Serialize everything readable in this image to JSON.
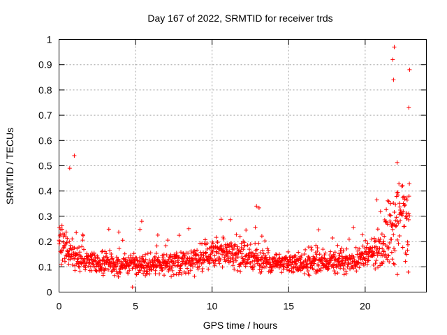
{
  "chart_data": {
    "type": "scatter",
    "title": "Day 167 of 2022, SRMTID for receiver trds",
    "xlabel": "GPS time / hours",
    "ylabel": "SRMTID / TECUs",
    "xlim": [
      0,
      24
    ],
    "ylim": [
      0,
      1
    ],
    "grid": true,
    "marker": "+",
    "color": "#ff0000",
    "xticks": [
      {
        "value": 0,
        "label": "0"
      },
      {
        "value": 5,
        "label": "5"
      },
      {
        "value": 10,
        "label": "10"
      },
      {
        "value": 15,
        "label": "15"
      },
      {
        "value": 20,
        "label": "20"
      }
    ],
    "yticks": [
      {
        "value": 0,
        "label": "0"
      },
      {
        "value": 0.1,
        "label": "0.1"
      },
      {
        "value": 0.2,
        "label": "0.2"
      },
      {
        "value": 0.3,
        "label": "0.3"
      },
      {
        "value": 0.4,
        "label": "0.4"
      },
      {
        "value": 0.5,
        "label": "0.5"
      },
      {
        "value": 0.6,
        "label": "0.6"
      },
      {
        "value": 0.7,
        "label": "0.7"
      },
      {
        "value": 0.8,
        "label": "0.8"
      },
      {
        "value": 0.9,
        "label": "0.9"
      },
      {
        "value": 1,
        "label": "1"
      }
    ],
    "series": [
      {
        "name": "SRMTID (trds)",
        "x_range": [
          0,
          22.9
        ],
        "points_count": 1380,
        "baseline_by_hour": [
          {
            "x": 0,
            "y": 0.2
          },
          {
            "x": 1,
            "y": 0.14
          },
          {
            "x": 3,
            "y": 0.11
          },
          {
            "x": 5,
            "y": 0.11
          },
          {
            "x": 7,
            "y": 0.11
          },
          {
            "x": 9,
            "y": 0.13
          },
          {
            "x": 11,
            "y": 0.16
          },
          {
            "x": 13,
            "y": 0.13
          },
          {
            "x": 15,
            "y": 0.11
          },
          {
            "x": 17,
            "y": 0.12
          },
          {
            "x": 19,
            "y": 0.12
          },
          {
            "x": 20.5,
            "y": 0.15
          },
          {
            "x": 21.5,
            "y": 0.22
          },
          {
            "x": 22.9,
            "y": 0.35
          }
        ],
        "notable_points": [
          {
            "x": 1.0,
            "y": 0.54
          },
          {
            "x": 0.7,
            "y": 0.49
          },
          {
            "x": 5.4,
            "y": 0.28
          },
          {
            "x": 12.9,
            "y": 0.34
          },
          {
            "x": 21.9,
            "y": 0.97
          },
          {
            "x": 21.8,
            "y": 0.92
          },
          {
            "x": 21.85,
            "y": 0.84
          },
          {
            "x": 22.9,
            "y": 0.88
          },
          {
            "x": 22.85,
            "y": 0.73
          },
          {
            "x": 22.1,
            "y": 0.07
          },
          {
            "x": 4.8,
            "y": 0.02
          }
        ]
      }
    ]
  }
}
